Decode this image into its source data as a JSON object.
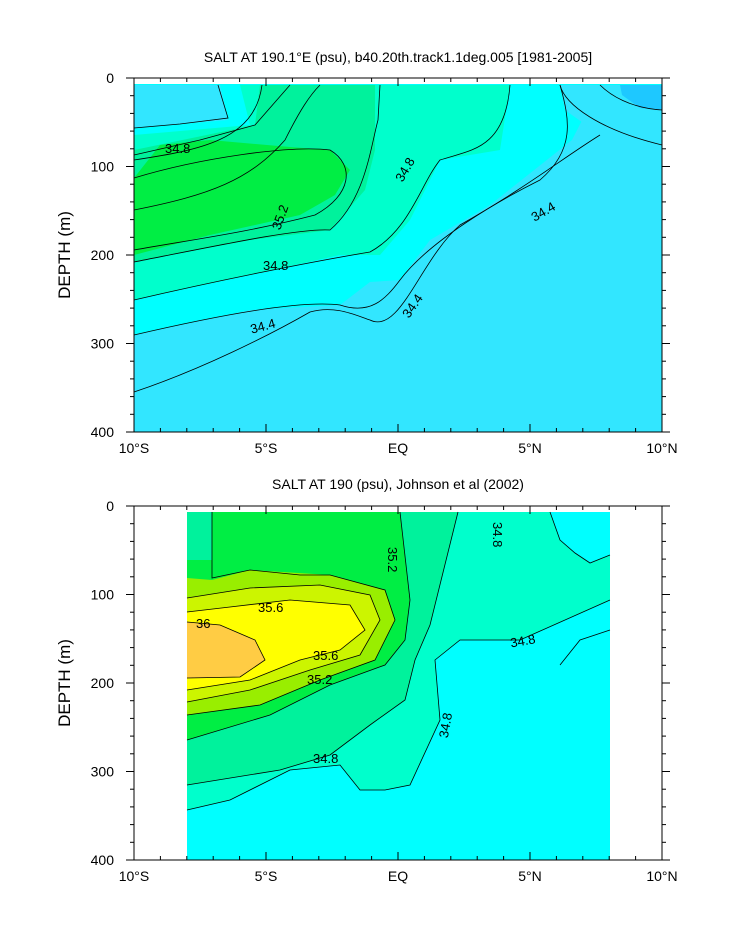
{
  "chart_data": [
    {
      "type": "contour",
      "title": "SALT AT 190.1°E (psu), b40.20th.track1.1deg.005 [1981-2005]",
      "ylabel": "DEPTH (m)",
      "xlabel": "",
      "x_ticks": [
        "10°S",
        "5°S",
        "EQ",
        "5°N",
        "10°N"
      ],
      "x_range": [
        -10,
        10
      ],
      "y_ticks": [
        "0",
        "100",
        "200",
        "300",
        "400"
      ],
      "y_range": [
        0,
        400
      ],
      "y_reversed": true,
      "contour_labels": [
        "34.8",
        "35.2",
        "34.8",
        "34.8",
        "34.4",
        "34.4",
        "34.4"
      ],
      "levels": [
        34.0,
        34.2,
        34.4,
        34.6,
        34.8,
        35.0,
        35.2
      ],
      "fill_colors": {
        "lt_34.2": "#1ec8ff",
        "34.2_34.6": "#32e6ff",
        "34.6_34.8": "#00ffff",
        "34.8_35.0": "#00ffcc",
        "35.0_35.2": "#00f29c",
        "gt_35.2": "#00ee44"
      }
    },
    {
      "type": "contour",
      "title": "SALT AT 190 (psu), Johnson et al (2002)",
      "ylabel": "DEPTH (m)",
      "xlabel": "",
      "x_ticks": [
        "10°S",
        "5°S",
        "EQ",
        "5°N",
        "10°N"
      ],
      "x_range": [
        -10,
        10
      ],
      "data_x_range": [
        -8,
        8
      ],
      "y_ticks": [
        "0",
        "100",
        "200",
        "300",
        "400"
      ],
      "y_range": [
        0,
        400
      ],
      "y_reversed": true,
      "contour_labels": [
        "34.8",
        "35.2",
        "35.6",
        "36",
        "34.8",
        "35.6",
        "35.2",
        "34.8",
        "34.8"
      ],
      "levels": [
        34.6,
        34.8,
        35.0,
        35.2,
        35.4,
        35.6,
        35.8,
        36.0
      ],
      "fill_colors": {
        "34.6_34.8": "#00ffff",
        "34.8_35.0": "#00ffcc",
        "35.0_35.2": "#00f29c",
        "35.2_35.4": "#00ee44",
        "35.4_35.6": "#99ee00",
        "35.6_35.8": "#ccf500",
        "35.8_36.0": "#ffff00",
        "gt_36.0": "#ffcc44"
      }
    }
  ]
}
